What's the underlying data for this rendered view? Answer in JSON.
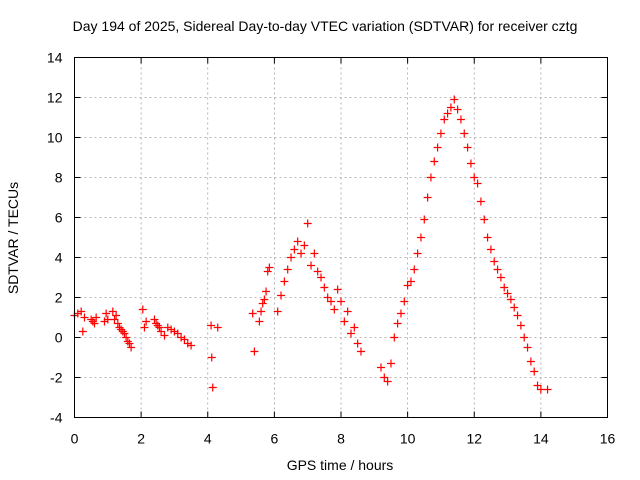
{
  "chart_data": {
    "type": "scatter",
    "title": "Day 194 of 2025, Sidereal Day-to-day VTEC variation (SDTVAR) for receiver cztg",
    "xlabel": "GPS time / hours",
    "ylabel": "SDTVAR / TECUs",
    "xlim": [
      0,
      16
    ],
    "ylim": [
      -4,
      14
    ],
    "xticks": [
      "0",
      "2",
      "4",
      "6",
      "8",
      "10",
      "12",
      "14",
      "16"
    ],
    "yticks": [
      "-4",
      "-2",
      "0",
      "2",
      "4",
      "6",
      "8",
      "10",
      "12",
      "14"
    ],
    "grid": true,
    "marker": "plus",
    "color": "#ff0000",
    "series": [
      {
        "name": "SDTVAR",
        "x": [
          0.0,
          0.1,
          0.2,
          0.25,
          0.3,
          0.5,
          0.55,
          0.6,
          0.65,
          0.9,
          0.95,
          1.0,
          1.15,
          1.2,
          1.25,
          1.3,
          1.35,
          1.4,
          1.45,
          1.5,
          1.55,
          1.6,
          1.65,
          1.7,
          2.05,
          2.1,
          2.15,
          2.4,
          2.45,
          2.5,
          2.55,
          2.6,
          2.7,
          2.8,
          2.9,
          3.0,
          3.1,
          3.2,
          3.3,
          3.4,
          3.5,
          4.1,
          4.12,
          4.15,
          4.3,
          5.35,
          5.4,
          5.55,
          5.6,
          5.65,
          5.7,
          5.75,
          5.8,
          5.85,
          6.1,
          6.2,
          6.3,
          6.4,
          6.5,
          6.6,
          6.7,
          6.8,
          6.9,
          7.0,
          7.1,
          7.2,
          7.3,
          7.4,
          7.5,
          7.6,
          7.7,
          7.8,
          7.9,
          8.0,
          8.1,
          8.2,
          8.3,
          8.4,
          8.5,
          8.6,
          9.2,
          9.3,
          9.4,
          9.5,
          9.6,
          9.7,
          9.8,
          9.9,
          10.0,
          10.1,
          10.2,
          10.3,
          10.4,
          10.5,
          10.6,
          10.7,
          10.8,
          10.9,
          11.0,
          11.1,
          11.2,
          11.3,
          11.4,
          11.5,
          11.6,
          11.7,
          11.8,
          11.9,
          12.0,
          12.1,
          12.2,
          12.3,
          12.4,
          12.5,
          12.6,
          12.7,
          12.8,
          12.9,
          13.0,
          13.1,
          13.2,
          13.3,
          13.4,
          13.5,
          13.6,
          13.7,
          13.8,
          13.9,
          14.0,
          14.2
        ],
        "y": [
          1.1,
          1.2,
          1.3,
          0.3,
          1.0,
          0.9,
          0.8,
          0.7,
          1.0,
          0.8,
          1.2,
          0.9,
          1.3,
          0.9,
          1.1,
          0.7,
          0.5,
          0.4,
          0.3,
          0.2,
          0.0,
          -0.2,
          -0.3,
          -0.5,
          1.4,
          0.5,
          0.8,
          0.9,
          0.7,
          0.6,
          0.5,
          0.3,
          0.1,
          0.5,
          0.4,
          0.3,
          0.2,
          0.0,
          -0.1,
          -0.3,
          -0.4,
          0.6,
          -1.0,
          -2.5,
          0.5,
          1.2,
          -0.7,
          0.8,
          1.3,
          1.7,
          1.9,
          2.3,
          3.3,
          3.5,
          1.3,
          2.1,
          2.8,
          3.4,
          4.0,
          4.4,
          4.8,
          4.2,
          4.6,
          5.7,
          3.6,
          4.2,
          3.3,
          3.0,
          2.5,
          2.0,
          1.8,
          1.4,
          2.4,
          1.8,
          0.8,
          1.3,
          0.2,
          0.5,
          -0.3,
          -0.7,
          -1.5,
          -2.0,
          -2.2,
          -1.3,
          0.0,
          0.7,
          1.2,
          1.8,
          2.6,
          2.8,
          3.4,
          4.2,
          5.0,
          5.9,
          7.0,
          8.0,
          8.8,
          9.5,
          10.2,
          10.9,
          11.2,
          11.5,
          11.9,
          11.4,
          10.9,
          10.2,
          9.5,
          8.7,
          8.0,
          7.7,
          6.8,
          5.9,
          5.0,
          4.4,
          3.8,
          3.4,
          3.0,
          2.5,
          2.2,
          1.9,
          1.5,
          1.1,
          0.6,
          0.0,
          -0.5,
          -1.2,
          -1.7,
          -2.4,
          -2.6,
          -2.6
        ]
      }
    ]
  }
}
